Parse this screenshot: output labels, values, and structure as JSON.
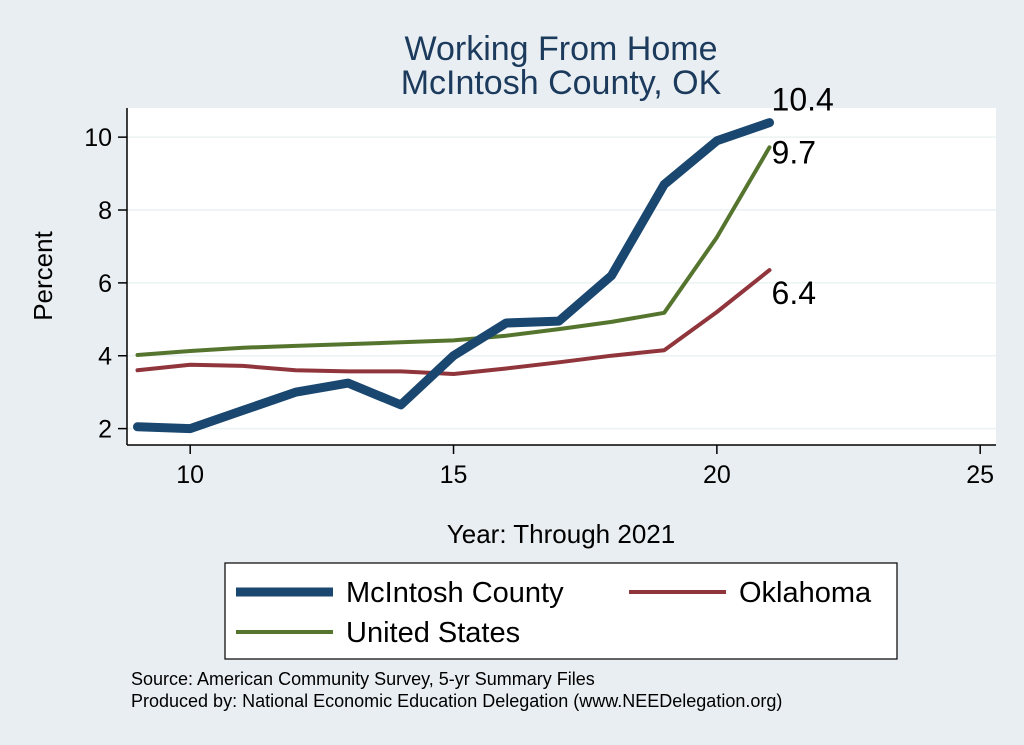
{
  "chart_data": {
    "type": "line",
    "title": [
      "Working From Home",
      "McIntosh County, OK"
    ],
    "xlabel": "Year: Through 2021",
    "ylabel": "Percent",
    "xlim": [
      8.8,
      25.3
    ],
    "ylim": [
      1.55,
      10.8
    ],
    "xticks": [
      10,
      15,
      20,
      25
    ],
    "yticks": [
      2,
      4,
      6,
      8,
      10
    ],
    "grid": true,
    "series": [
      {
        "name": "McIntosh County",
        "color": "#1a476f",
        "x": [
          9,
          10,
          11,
          12,
          13,
          14,
          15,
          16,
          17,
          18,
          19,
          20,
          21
        ],
        "y": [
          2.05,
          2.0,
          2.5,
          3.0,
          3.25,
          2.65,
          4.0,
          4.9,
          4.95,
          6.2,
          8.7,
          9.9,
          10.4
        ],
        "end_label": "10.4"
      },
      {
        "name": "Oklahoma",
        "color": "#90353b",
        "x": [
          9,
          10,
          11,
          12,
          13,
          14,
          15,
          16,
          17,
          18,
          19,
          20,
          21
        ],
        "y": [
          3.6,
          3.75,
          3.72,
          3.6,
          3.57,
          3.57,
          3.5,
          3.65,
          3.82,
          4.0,
          4.15,
          5.2,
          6.35
        ],
        "end_label": "6.4"
      },
      {
        "name": "United States",
        "color": "#55752f",
        "x": [
          9,
          10,
          11,
          12,
          13,
          14,
          15,
          16,
          17,
          18,
          19,
          20,
          21
        ],
        "y": [
          4.02,
          4.13,
          4.22,
          4.27,
          4.32,
          4.37,
          4.42,
          4.55,
          4.73,
          4.93,
          5.18,
          7.25,
          9.72
        ],
        "end_label": "9.7"
      }
    ],
    "legend": {
      "placement": "bottom",
      "entries": [
        "McIntosh County",
        "Oklahoma",
        "United States"
      ]
    },
    "notes": [
      "Source: American Community Survey, 5-yr Summary Files",
      "Produced by: National Economic Education Delegation (www.NEEDelegation.org)"
    ]
  }
}
